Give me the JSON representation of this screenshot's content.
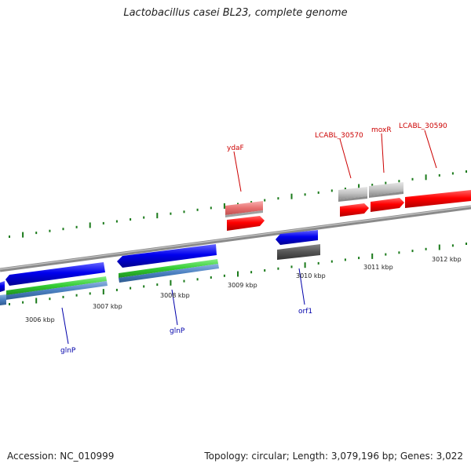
{
  "title": "Lactobacillus casei BL23, complete genome",
  "footer": {
    "accession": "Accession: NC_010999",
    "topology": "Topology: circular; Length: 3,079,196 bp; Genes: 3,022"
  },
  "scale_labels": [
    "3006 kbp",
    "3007 kbp",
    "3008 kbp",
    "3009 kbp",
    "3010 kbp",
    "3011 kbp",
    "3012 kbp"
  ],
  "gene_labels": {
    "ydaF": "ydaF",
    "lcabl_30570": "LCABL_30570",
    "moxR": "moxR",
    "lcabl_30590": "LCABL_30590",
    "glnP_1": "glnP",
    "glnP_2": "glnP",
    "orf1": "orf1"
  },
  "colors": {
    "backbone": "#8a8a8a",
    "tick": "#1a7a1a",
    "forward_label": "#cc0000",
    "reverse_label": "#0000aa",
    "cds_forward": "#ff0000",
    "cds_reverse": "#0000ee",
    "pseudo": "#f08080",
    "gray_feature": "#c8c8c8",
    "dark_feature": "#555555",
    "green_feature": "#33cc33",
    "steel_feature": "#4a7fc0"
  }
}
